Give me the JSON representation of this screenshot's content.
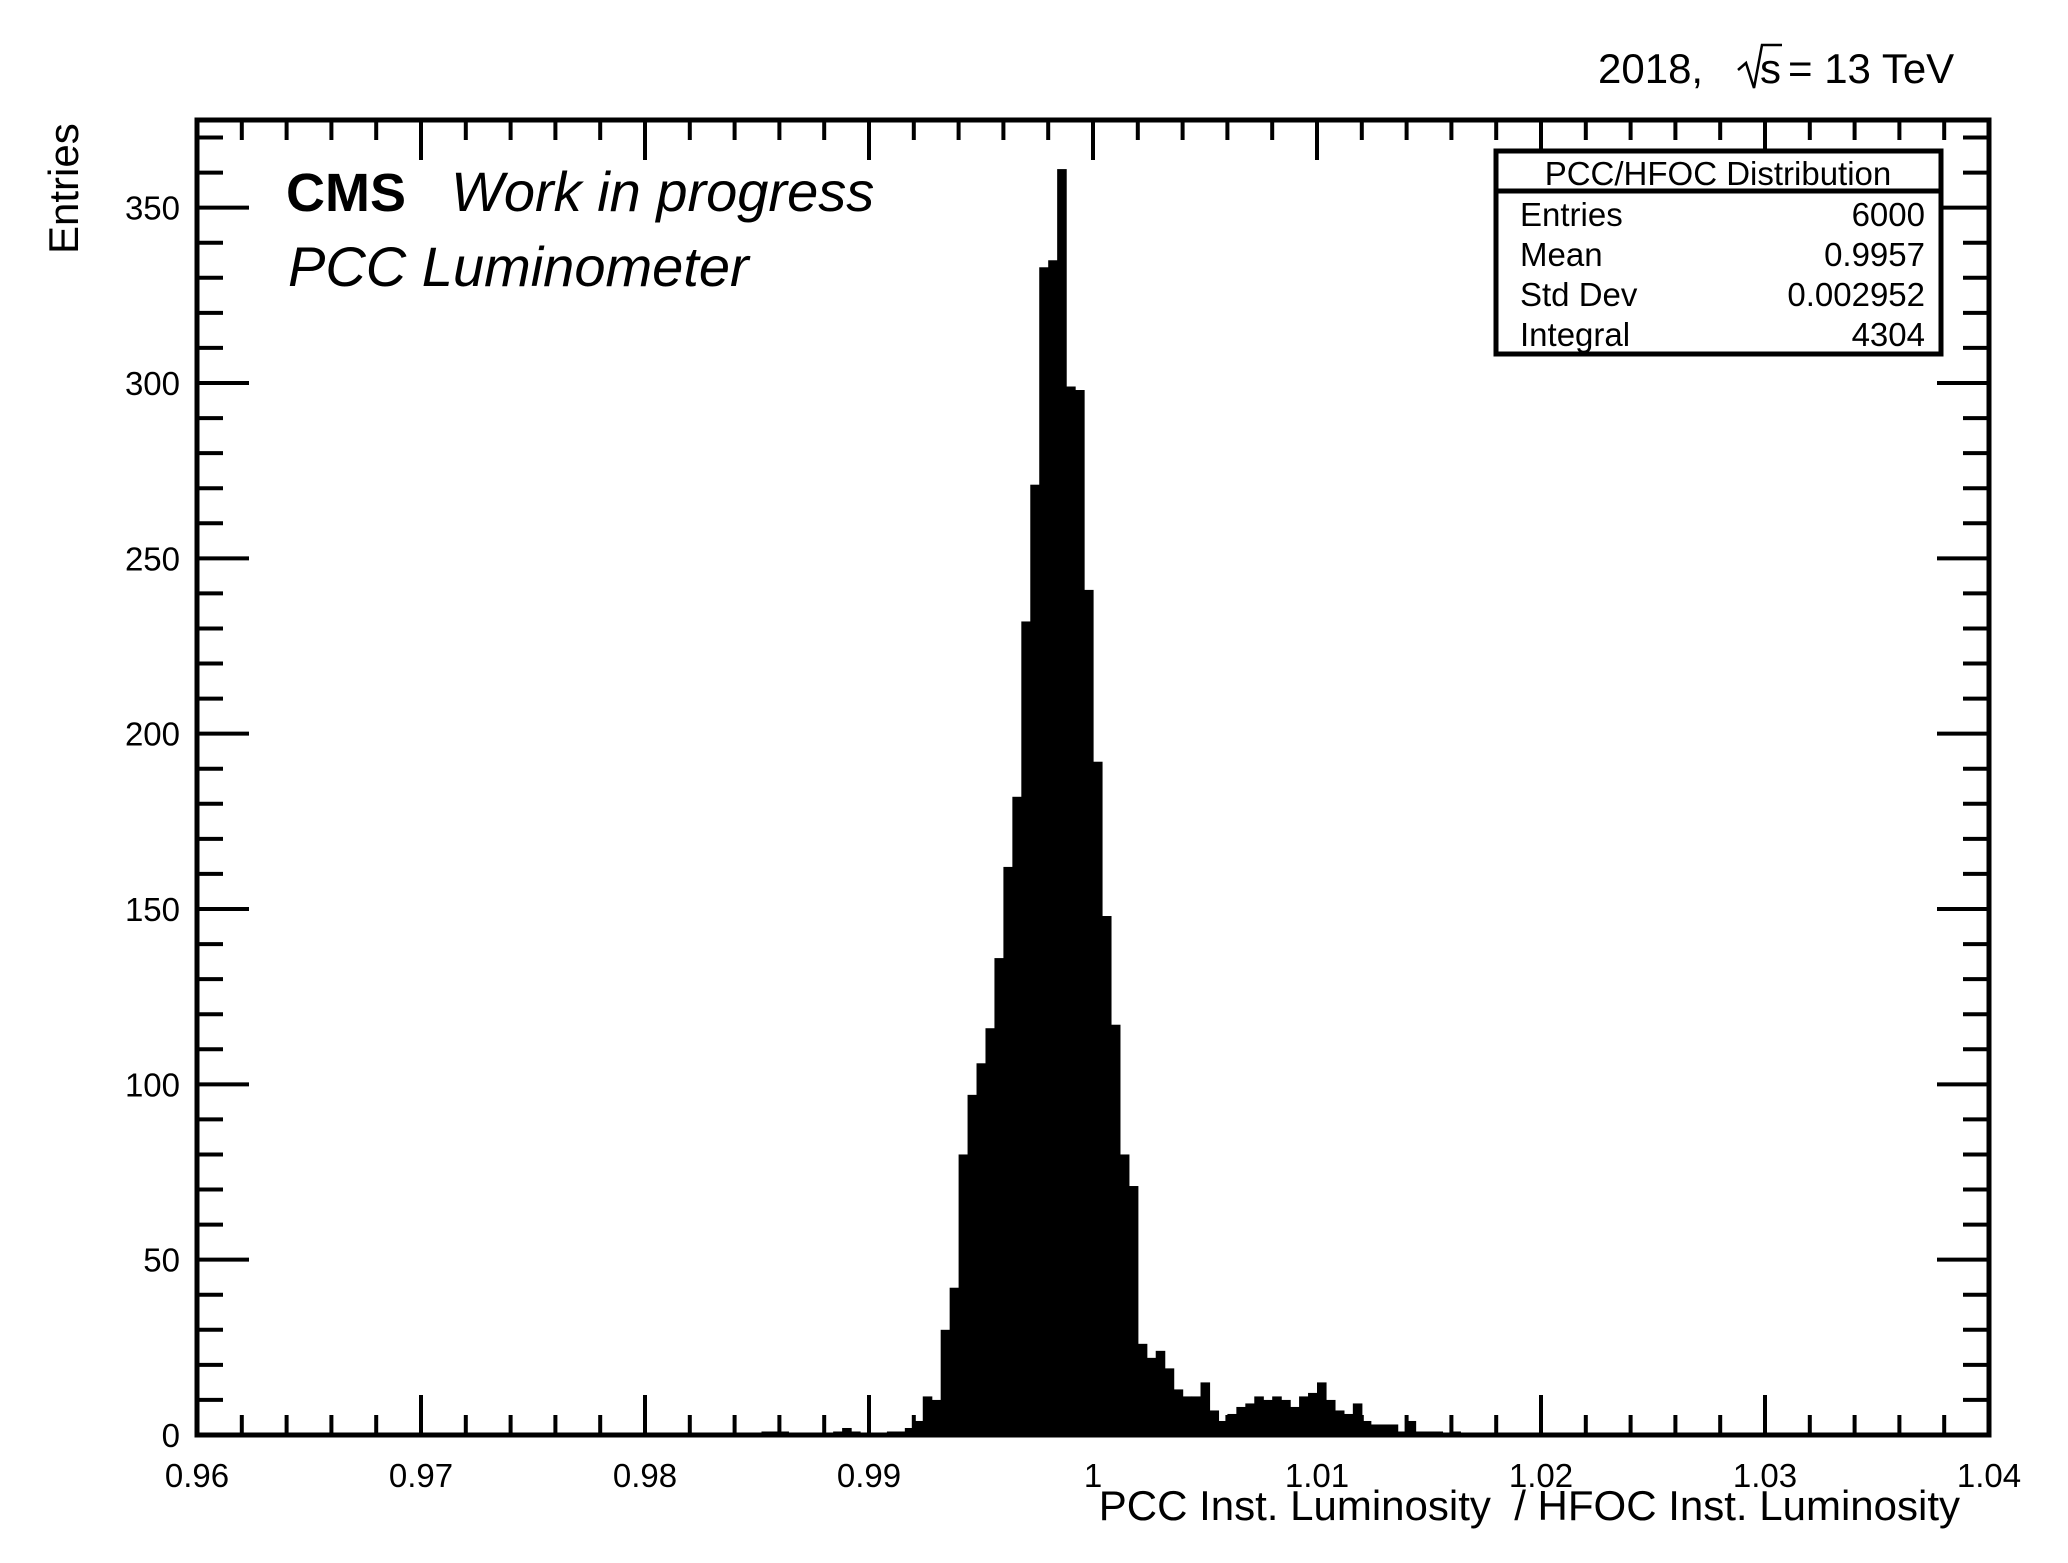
{
  "header": {
    "year": "2018,",
    "sqrt_s": "s",
    "energy": "= 13 TeV"
  },
  "annotations": {
    "experiment": "CMS",
    "status": "Work in progress",
    "detector": "PCC Luminometer"
  },
  "stats_box": {
    "title": "PCC/HFOC Distribution",
    "rows": [
      {
        "label": "Entries",
        "value": "6000"
      },
      {
        "label": "Mean",
        "value": "0.9957"
      },
      {
        "label": "Std Dev",
        "value": "0.002952"
      },
      {
        "label": "Integral",
        "value": "4304"
      }
    ]
  },
  "chart_data": {
    "type": "bar",
    "title": "",
    "xlabel": "PCC Inst. Luminosity  / HFOC Inst. Luminosity",
    "ylabel": "Entries",
    "xlim": [
      0.96,
      1.04
    ],
    "ylim": [
      0,
      375
    ],
    "x_ticks": [
      "0.96",
      "0.97",
      "0.98",
      "0.99",
      "1",
      "1.01",
      "1.02",
      "1.03",
      "1.04"
    ],
    "y_ticks": [
      "0",
      "50",
      "100",
      "150",
      "200",
      "250",
      "300",
      "350"
    ],
    "grid": false,
    "fill_color": "#000000",
    "bins": {
      "start": 0.96,
      "width": 0.0004,
      "values": [
        0,
        0,
        0,
        0,
        0,
        0,
        0,
        0,
        0,
        0,
        0,
        0,
        0,
        0,
        0,
        0,
        0,
        0,
        0,
        0,
        0,
        0,
        0,
        0,
        0,
        0,
        0,
        0,
        0,
        0,
        0,
        0,
        0,
        0,
        0,
        0,
        0,
        0,
        0,
        0,
        0,
        0,
        0,
        0,
        0,
        0,
        0,
        0,
        0,
        0,
        0,
        0,
        0,
        0,
        0,
        0,
        0,
        0,
        0,
        0,
        0,
        0,
        0,
        1,
        1,
        1,
        0,
        0,
        0,
        0,
        0,
        1,
        2,
        1,
        0,
        0,
        0,
        1,
        1,
        2,
        4,
        11,
        10,
        30,
        42,
        80,
        97,
        106,
        116,
        136,
        162,
        182,
        232,
        271,
        333,
        335,
        361,
        299,
        298,
        241,
        192,
        148,
        117,
        80,
        71,
        26,
        22,
        24,
        19,
        13,
        11,
        11,
        15,
        7,
        4,
        6,
        8,
        9,
        11,
        10,
        11,
        10,
        8,
        11,
        12,
        15,
        10,
        7,
        6,
        9,
        4,
        3,
        3,
        3,
        1,
        4,
        1,
        1,
        1,
        0,
        1,
        0,
        0,
        0,
        0,
        0,
        0,
        0,
        0,
        0,
        0,
        0,
        0,
        0,
        0,
        0,
        0,
        0,
        0,
        0,
        0,
        0,
        0,
        0,
        0,
        0,
        0,
        0,
        0,
        0,
        0,
        0,
        0,
        0,
        0,
        0,
        0,
        0,
        0,
        0,
        0,
        0,
        0,
        0,
        0,
        0,
        0,
        0,
        0,
        0,
        0,
        0,
        0,
        0,
        0,
        0,
        0,
        0,
        0,
        0
      ]
    }
  }
}
